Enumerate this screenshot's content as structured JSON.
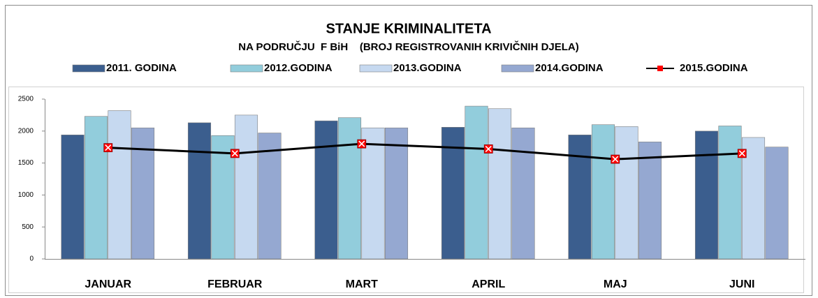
{
  "chart_data": {
    "type": "bar",
    "title": "STANJE KRIMINALITETA",
    "subtitle": "NA PODRUČJU  F BiH    (BROJ REGISTROVANIH KRIVIČNIH DJELA)",
    "categories": [
      "JANUAR",
      "FEBRUAR",
      "MART",
      "APRIL",
      "MAJ",
      "JUNI"
    ],
    "series": [
      {
        "name": "2011. GODINA",
        "color": "#3b5e8e",
        "values": [
          1940,
          2130,
          2160,
          2060,
          1940,
          2000
        ]
      },
      {
        "name": "2012.GODINA",
        "color": "#92cddc",
        "values": [
          2230,
          1930,
          2210,
          2390,
          2100,
          2080
        ]
      },
      {
        "name": "2013.GODINA",
        "color": "#c6d9f0",
        "values": [
          2320,
          2250,
          2050,
          2350,
          2070,
          1900
        ]
      },
      {
        "name": "2014.GODINA",
        "color": "#95a8d1",
        "values": [
          2050,
          1970,
          2050,
          2050,
          1830,
          1750
        ]
      },
      {
        "name": "2015.GODINA",
        "color": "#000000",
        "type": "line",
        "marker_color": "#ff0000",
        "values": [
          1740,
          1650,
          1800,
          1720,
          1560,
          1650
        ]
      }
    ],
    "ylim": [
      0,
      2500
    ],
    "yticks": [
      0,
      500,
      1000,
      1500,
      2000,
      2500
    ],
    "grid": false,
    "legend": "top"
  }
}
